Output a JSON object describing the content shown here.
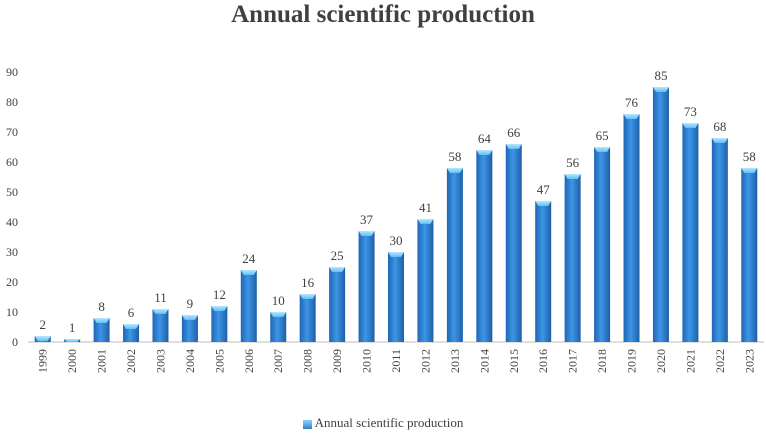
{
  "chart_data": {
    "type": "bar",
    "title": "Annual scientific production",
    "xlabel": "",
    "ylabel": "",
    "ylim": [
      0,
      90
    ],
    "yticks": [
      0,
      10,
      20,
      30,
      40,
      50,
      60,
      70,
      80,
      90
    ],
    "grid": false,
    "legend_position": "bottom",
    "categories": [
      "1999",
      "2000",
      "2001",
      "2002",
      "2003",
      "2004",
      "2005",
      "2006",
      "2007",
      "2008",
      "2009",
      "2010",
      "2011",
      "2012",
      "2013",
      "2014",
      "2015",
      "2016",
      "2017",
      "2018",
      "2019",
      "2020",
      "2021",
      "2022",
      "2023"
    ],
    "series": [
      {
        "name": "Annual scientific production",
        "values": [
          2,
          1,
          8,
          6,
          11,
          9,
          12,
          24,
          10,
          16,
          25,
          37,
          30,
          41,
          58,
          64,
          66,
          47,
          56,
          65,
          76,
          85,
          73,
          68,
          58
        ],
        "color": "#2e7fd0"
      }
    ]
  }
}
